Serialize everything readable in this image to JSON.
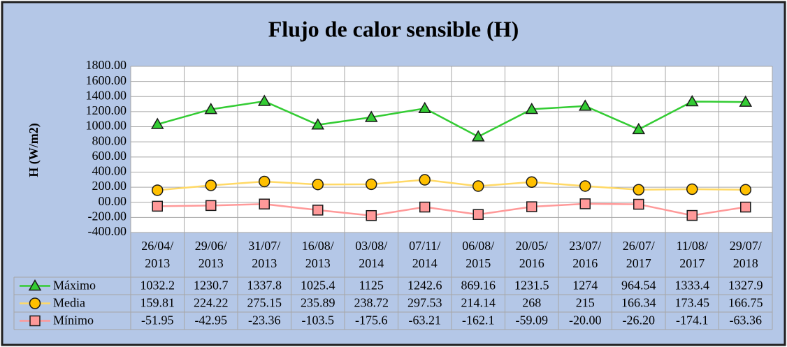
{
  "chart_data": {
    "type": "line",
    "title": "Flujo de calor sensible (H)",
    "y_label": "H (W/m2)",
    "categories": [
      "26/04/2013",
      "29/06/2013",
      "31/07/2013",
      "16/08/2013",
      "03/08/2014",
      "07/11/2014",
      "06/08/2015",
      "20/05/2016",
      "23/07/2016",
      "26/07/2017",
      "11/08/2017",
      "29/07/2018"
    ],
    "series": [
      {
        "name": "Máximo",
        "color": "#33cc33",
        "marker_color": "#33cc33",
        "marker": "triangle",
        "values": [
          1032.2,
          1230.7,
          1337.8,
          1025.4,
          1125,
          1242.6,
          869.16,
          1231.5,
          1274,
          964.54,
          1333.4,
          1327.9
        ]
      },
      {
        "name": "Media",
        "color": "#ffd966",
        "marker_color": "#ffc000",
        "marker": "circle",
        "values": [
          159.81,
          224.22,
          275.15,
          235.89,
          238.72,
          297.53,
          214.14,
          268,
          215,
          166.34,
          173.45,
          166.75
        ]
      },
      {
        "name": "Mínimo",
        "color": "#ff9999",
        "marker_color": "#ff9999",
        "marker": "square",
        "values": [
          -51.95,
          -42.95,
          -23.36,
          -103.5,
          -175.6,
          -63.21,
          -162.1,
          -59.09,
          -20,
          -26.2,
          -174.1,
          -63.36
        ],
        "value_labels": [
          "-51.95",
          "-42.95",
          "-23.36",
          "-103.5",
          "-175.6",
          "-63.21",
          "-162.1",
          "-59.09",
          "-20.00",
          "-26.20",
          "-174.1",
          "-63.36"
        ]
      }
    ],
    "ylim": [
      -400,
      1800
    ],
    "yticks": [
      {
        "value": -400,
        "label": "-400.00"
      },
      {
        "value": -200,
        "label": "-200.00"
      },
      {
        "value": 0,
        "label": "00.00"
      },
      {
        "value": 200,
        "label": "200.00"
      },
      {
        "value": 400,
        "label": "400.00"
      },
      {
        "value": 600,
        "label": "600.00"
      },
      {
        "value": 800,
        "label": "800.00"
      },
      {
        "value": 1000,
        "label": "1000.00"
      },
      {
        "value": 1200,
        "label": "1200.00"
      },
      {
        "value": 1400,
        "label": "1400.00"
      },
      {
        "value": 1600,
        "label": "1600.00"
      },
      {
        "value": 1800,
        "label": "1800.00"
      }
    ],
    "grid": true
  }
}
